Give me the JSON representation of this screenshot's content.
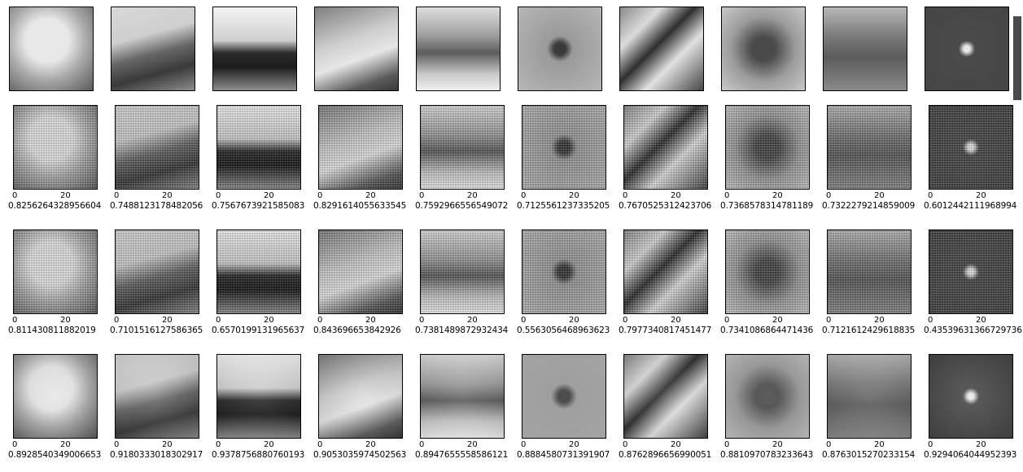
{
  "axis_ticks": [
    "0",
    "20"
  ],
  "rows": [
    {
      "scores": []
    },
    {
      "scores": [
        "0.8256264328956604",
        "0.7488123178482056",
        "0.7567673921585083",
        "0.8291614055633545",
        "0.7592966556549072",
        "0.7125561237335205",
        "0.7670525312423706",
        "0.7368578314781189",
        "0.7322279214859009",
        "0.6012442111968994"
      ]
    },
    {
      "scores": [
        "0.811430811882019",
        "0.7101516127586365",
        "0.6570199131965637",
        "0.843696653842926",
        "0.7381489872932434",
        "0.5563056468963623",
        "0.7977340817451477",
        "0.7341086864471436",
        "0.7121612429618835",
        "0.43539631366729736"
      ]
    },
    {
      "scores": [
        "0.8928540349006653",
        "0.9180333018302917",
        "0.9378756880760193",
        "0.9053035974502563",
        "0.8947655558586121",
        "0.8884580731391907",
        "0.8762896656990051",
        "0.8810970783233643",
        "0.8763015270233154",
        "0.9294064044952393"
      ]
    }
  ]
}
